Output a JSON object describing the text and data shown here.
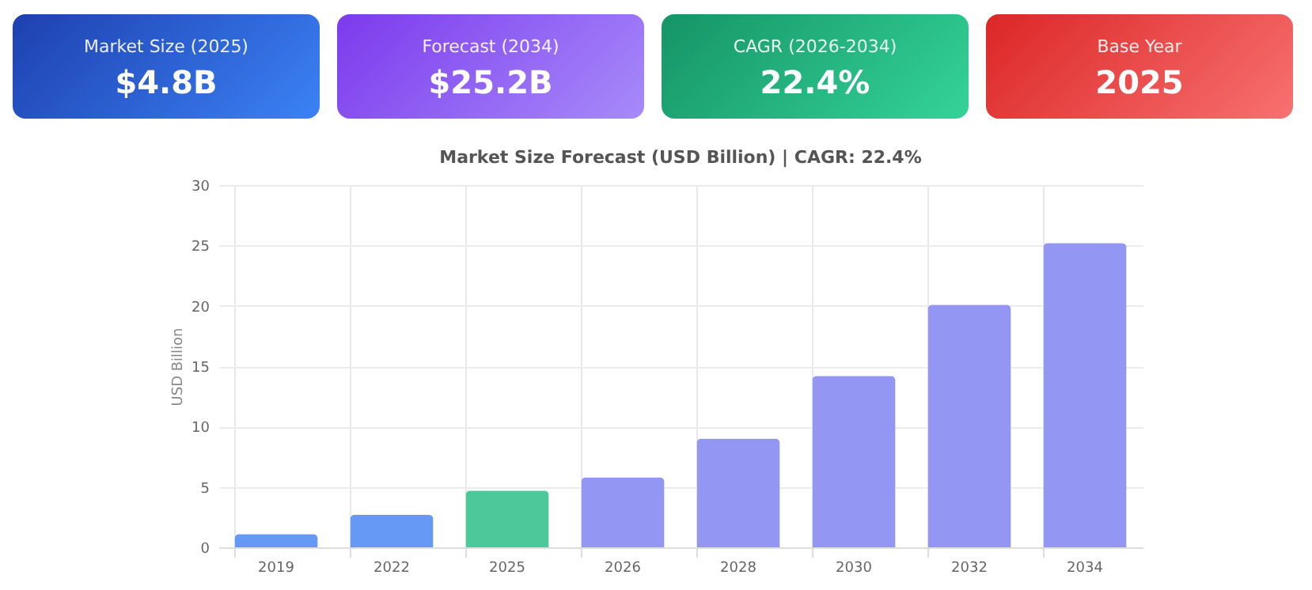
{
  "chart_data": [
    {
      "type": "other",
      "title": "Market Size (2025)",
      "annotations": [
        "$4.8B"
      ],
      "colors": [
        "#1e40af",
        "#3b82f6"
      ]
    },
    {
      "type": "other",
      "title": "Forecast (2034)",
      "annotations": [
        "$25.2B"
      ],
      "colors": [
        "#7c3aed",
        "#a78bfa"
      ]
    },
    {
      "type": "other",
      "title": "CAGR (2026-2034)",
      "annotations": [
        "22.4%"
      ],
      "colors": [
        "#169467",
        "#34d399"
      ]
    },
    {
      "type": "other",
      "title": "Base Year",
      "annotations": [
        "2025"
      ],
      "colors": [
        "#dc2626",
        "#f87171"
      ]
    },
    {
      "type": "bar",
      "title": "Market Size Forecast (USD Billion) | CAGR: 22.4%",
      "ylabel": "USD Billion",
      "categories": [
        "2019",
        "2022",
        "2025",
        "2026",
        "2028",
        "2030",
        "2032",
        "2034"
      ],
      "values": [
        1.1,
        2.7,
        4.7,
        5.8,
        9.0,
        14.2,
        20.1,
        25.2
      ],
      "colors": [
        "#6699f5",
        "#6699f5",
        "#4cc99a",
        "#9396f2",
        "#9396f2",
        "#9396f2",
        "#9396f2",
        "#9396f2"
      ],
      "ylim": [
        0,
        30
      ],
      "yticks": [
        0,
        5,
        10,
        15,
        20,
        25,
        30
      ],
      "grid": true,
      "legend": false
    }
  ]
}
